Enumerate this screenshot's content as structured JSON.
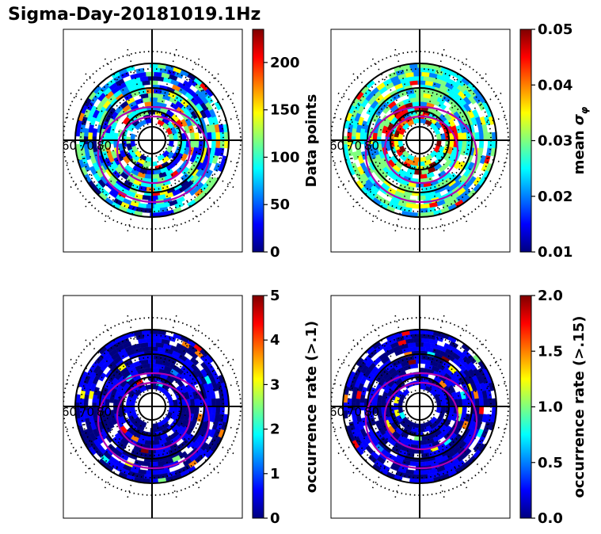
{
  "title": "Sigma-Day-20181019.1Hz",
  "lat_labels": [
    "60",
    "70",
    "80"
  ],
  "colormap": [
    "#00007f",
    "#0000ff",
    "#007fff",
    "#00ffff",
    "#7fff7f",
    "#ffff00",
    "#ff7f00",
    "#ff0000",
    "#7f0000"
  ],
  "contour_color": "#b000b0",
  "chart_data": [
    {
      "type": "heatmap",
      "projection": "polar",
      "colorbar": {
        "label": "Data points",
        "min": 0,
        "max": 235,
        "ticks": [
          "0",
          "50",
          "100",
          "150",
          "200"
        ],
        "tick_values": [
          0,
          50,
          100,
          150,
          200
        ]
      }
    },
    {
      "type": "heatmap",
      "projection": "polar",
      "colorbar": {
        "label": "mean σφ",
        "label_main": "mean ",
        "label_sym": "σ",
        "label_sub": "φ",
        "min": 0.01,
        "max": 0.05,
        "ticks": [
          "0.01",
          "0.02",
          "0.03",
          "0.04",
          "0.05"
        ],
        "tick_values": [
          0.01,
          0.02,
          0.03,
          0.04,
          0.05
        ]
      }
    },
    {
      "type": "heatmap",
      "projection": "polar",
      "colorbar": {
        "label": "occurrence rate (>.1)",
        "min": 0,
        "max": 5,
        "ticks": [
          "0",
          "1",
          "2",
          "3",
          "4",
          "5"
        ],
        "tick_values": [
          0,
          1,
          2,
          3,
          4,
          5
        ]
      }
    },
    {
      "type": "heatmap",
      "projection": "polar",
      "colorbar": {
        "label": "occurrence rate (>.15)",
        "min": 0,
        "max": 2,
        "ticks": [
          "0.0",
          "0.5",
          "1.0",
          "1.5",
          "2.0"
        ],
        "tick_values": [
          0,
          0.5,
          1.0,
          1.5,
          2.0
        ]
      }
    }
  ]
}
